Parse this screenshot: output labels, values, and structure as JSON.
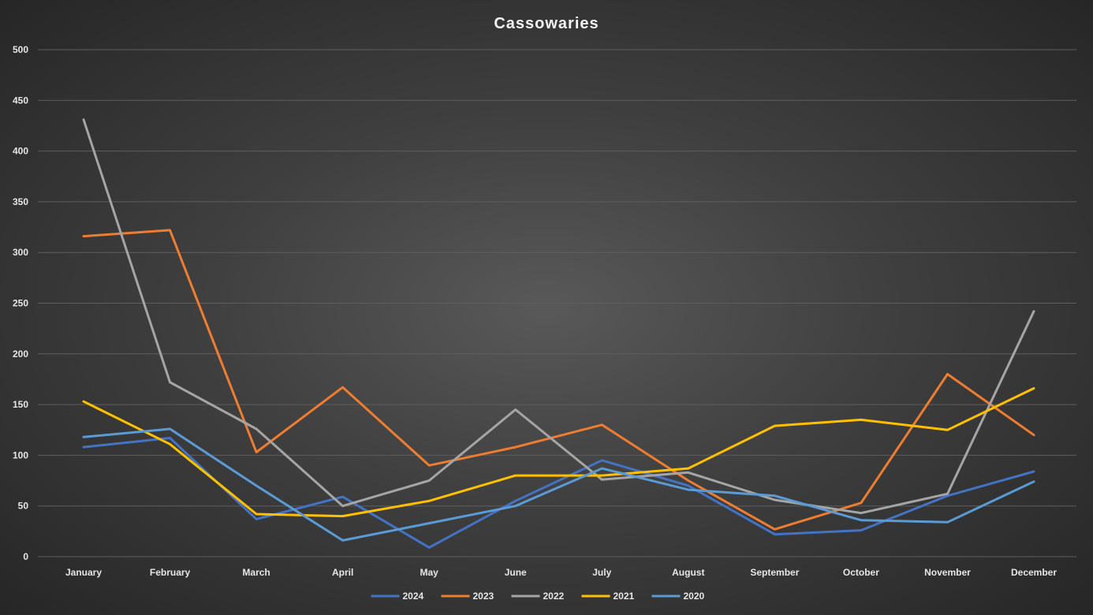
{
  "chart_data": {
    "type": "line",
    "title": "Cassowaries",
    "xlabel": "",
    "ylabel": "",
    "ylim": [
      0,
      500
    ],
    "yticks": [
      0,
      50,
      100,
      150,
      200,
      250,
      300,
      350,
      400,
      450,
      500
    ],
    "grid": true,
    "legend_position": "bottom",
    "categories": [
      "January",
      "February",
      "March",
      "April",
      "May",
      "June",
      "July",
      "August",
      "September",
      "October",
      "November",
      "December"
    ],
    "series": [
      {
        "name": "2024",
        "color": "#4472c4",
        "values": [
          108,
          117,
          37,
          59,
          9,
          55,
          95,
          70,
          22,
          26,
          60,
          84
        ]
      },
      {
        "name": "2023",
        "color": "#ed7d31",
        "values": [
          316,
          322,
          103,
          167,
          90,
          108,
          130,
          75,
          27,
          53,
          180,
          120
        ]
      },
      {
        "name": "2022",
        "color": "#a5a5a5",
        "values": [
          431,
          172,
          126,
          50,
          75,
          145,
          76,
          83,
          56,
          43,
          62,
          242
        ]
      },
      {
        "name": "2021",
        "color": "#ffc000",
        "values": [
          153,
          111,
          42,
          40,
          55,
          80,
          80,
          87,
          129,
          135,
          125,
          166
        ]
      },
      {
        "name": "2020",
        "color": "#5b9bd5",
        "values": [
          118,
          126,
          70,
          16,
          33,
          50,
          87,
          66,
          60,
          36,
          34,
          74
        ]
      }
    ]
  }
}
